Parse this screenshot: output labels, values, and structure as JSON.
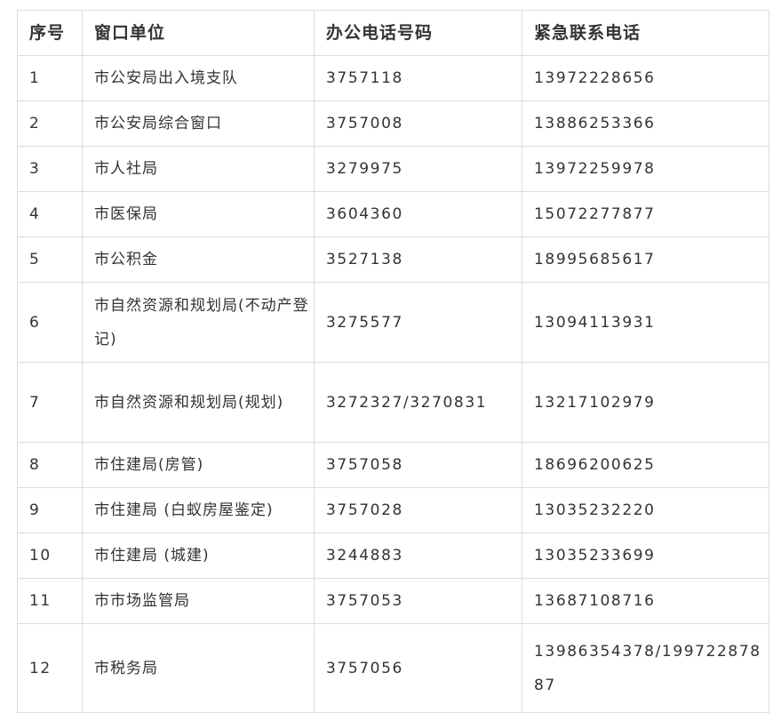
{
  "table": {
    "headers": [
      "序号",
      "窗口单位",
      "办公电话号码",
      "紧急联系电话"
    ],
    "rows": [
      {
        "no": "1",
        "unit": "市公安局出入境支队",
        "office": "3757118",
        "emergency": "13972228656"
      },
      {
        "no": "2",
        "unit": "市公安局综合窗口",
        "office": "3757008",
        "emergency": "13886253366"
      },
      {
        "no": "3",
        "unit": "市人社局",
        "office": "3279975",
        "emergency": "13972259978"
      },
      {
        "no": "4",
        "unit": "市医保局",
        "office": "3604360",
        "emergency": "15072277877"
      },
      {
        "no": "5",
        "unit": "市公积金",
        "office": "3527138",
        "emergency": "18995685617"
      },
      {
        "no": "6",
        "unit": "市自然资源和规划局(不动产登记)",
        "office": "3275577",
        "emergency": "13094113931"
      },
      {
        "no": "7",
        "unit": "市自然资源和规划局(规划)",
        "office": "3272327/3270831",
        "emergency": "13217102979"
      },
      {
        "no": "8",
        "unit": "市住建局(房管)",
        "office": "3757058",
        "emergency": "18696200625"
      },
      {
        "no": "9",
        "unit": "市住建局 (白蚁房屋鉴定)",
        "office": "3757028",
        "emergency": "13035232220"
      },
      {
        "no": "10",
        "unit": "市住建局 (城建)",
        "office": "3244883",
        "emergency": "13035233699"
      },
      {
        "no": "11",
        "unit": "市市场监管局",
        "office": "3757053",
        "emergency": "13687108716"
      },
      {
        "no": "12",
        "unit": "市税务局",
        "office": "3757056",
        "emergency": "13986354378/19972287887"
      }
    ]
  }
}
